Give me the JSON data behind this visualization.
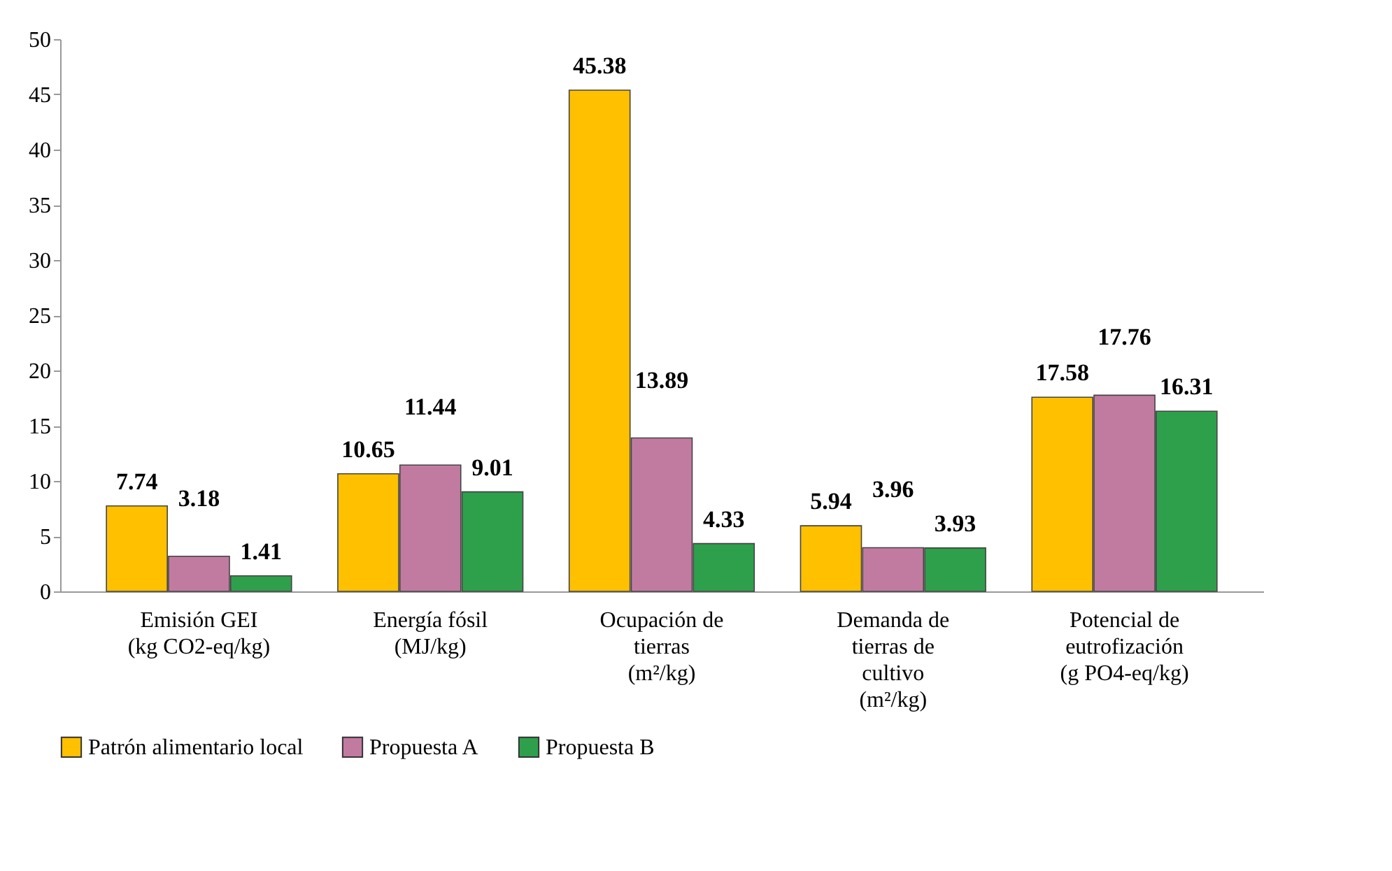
{
  "chart_data": {
    "type": "bar",
    "categories": [
      "Emisión GEI (kg CO2-eq/kg)",
      "Energía fósil (MJ/kg)",
      "Ocupación de tierras (m²/kg)",
      "Demanda de tierras de cultivo (m²/kg)",
      "Potencial de eutrofización (g PO4-eq/kg)"
    ],
    "series": [
      {
        "name": "Patrón alimentario local",
        "color": "#ffc000",
        "values": [
          7.74,
          10.65,
          45.38,
          5.94,
          17.58
        ]
      },
      {
        "name": "Propuesta A",
        "color": "#c27ba0",
        "values": [
          3.18,
          11.44,
          13.89,
          3.96,
          17.76
        ]
      },
      {
        "name": "Propuesta B",
        "color": "#2ea04c",
        "values": [
          1.41,
          9.01,
          4.33,
          3.93,
          16.31
        ]
      }
    ],
    "ylim": [
      0,
      50
    ],
    "yticks": [
      0,
      5,
      10,
      15,
      20,
      25,
      30,
      35,
      40,
      45,
      50
    ],
    "grid": false,
    "legend": "bottom",
    "data_labels": true
  }
}
